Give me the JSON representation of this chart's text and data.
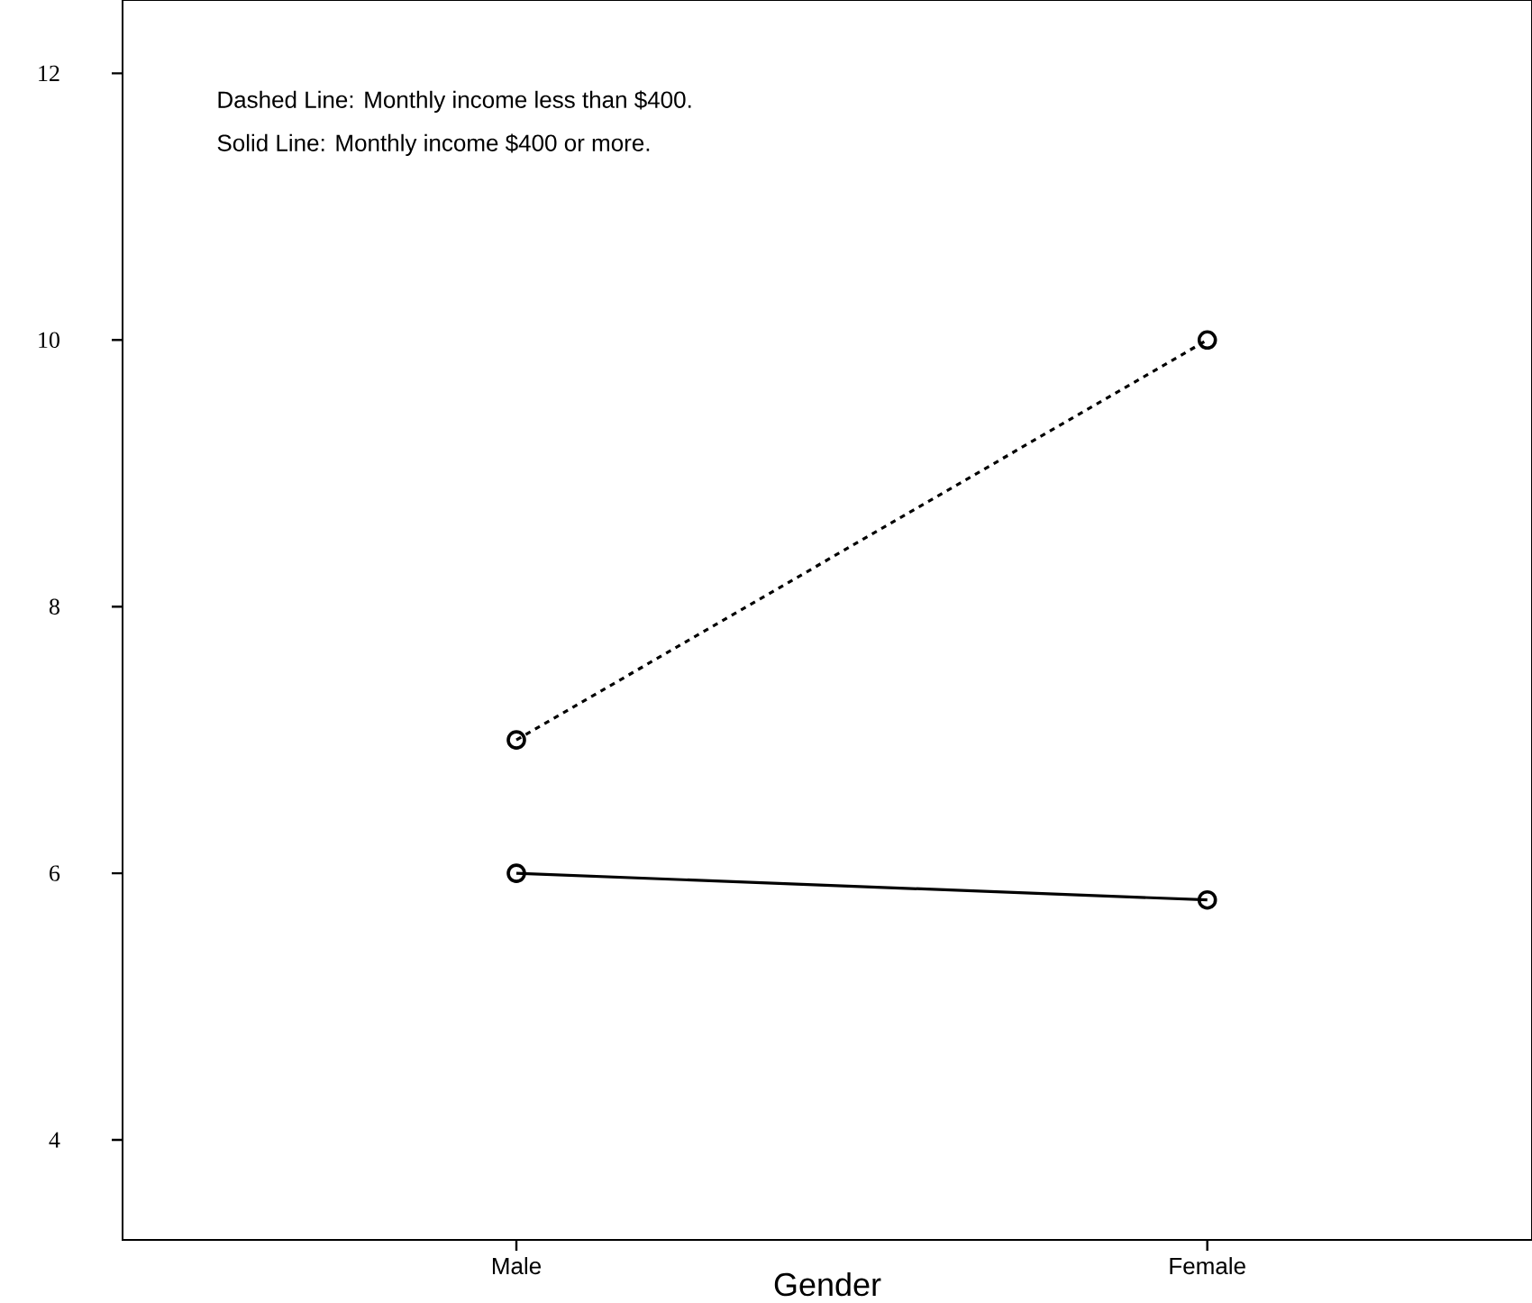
{
  "chart_data": {
    "type": "line",
    "xlabel": "Gender",
    "categories": [
      "Male",
      "Female"
    ],
    "series": [
      {
        "color": "#000000",
        "line_style": "dashed",
        "values": [
          7.0,
          10.0
        ]
      },
      {
        "color": "#000000",
        "line_style": "solid",
        "values": [
          6.0,
          5.8
        ]
      }
    ],
    "ylim": [
      3.25,
      12.55
    ],
    "yticks": [
      4,
      6,
      8,
      10,
      12
    ],
    "marker": "circle",
    "annotations": [
      "Dashed Line: Monthly income less than $400.",
      "Solid Line: Monthly income $400 or more."
    ]
  }
}
